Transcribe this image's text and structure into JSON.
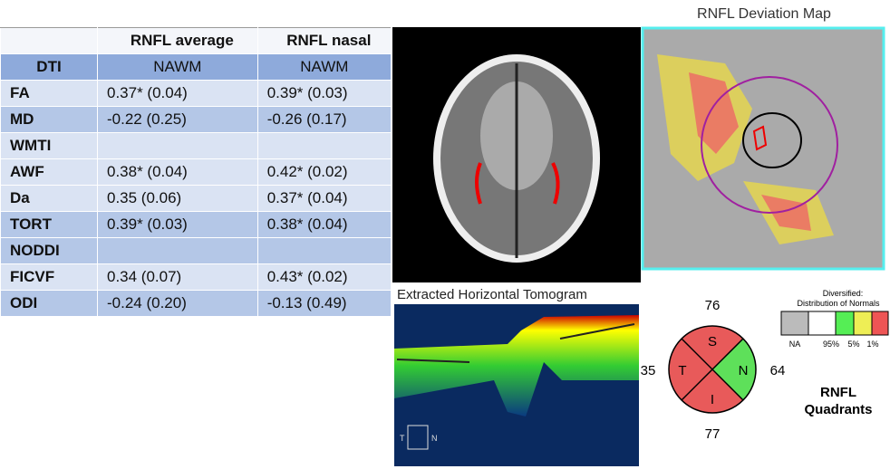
{
  "table": {
    "header": {
      "col1": "RNFL average",
      "col2": "RNFL nasal"
    },
    "rows": [
      [
        "DTI",
        "NAWM",
        "NAWM"
      ],
      [
        "FA",
        "0.37* (0.04)",
        "0.39* (0.03)"
      ],
      [
        "MD",
        "-0.22 (0.25)",
        "-0.26 (0.17)"
      ],
      [
        "WMTI"
      ],
      [
        "AWF",
        "0.38* (0.04)",
        "0.42* (0.02)"
      ],
      [
        "Da",
        "0.35 (0.06)",
        "0.37* (0.04)"
      ],
      [
        "TORT",
        "0.39* (0.03)",
        "0.38* (0.04)"
      ],
      [
        "NODDI"
      ],
      [
        "FICVF",
        "0.34 (0.07)",
        "0.43* (0.02)"
      ],
      [
        "ODI",
        "-0.24 (0.20)",
        "-0.13 (0.49)"
      ]
    ]
  },
  "deviation_map": {
    "title": "RNFL Deviation Map"
  },
  "tomogram": {
    "title": "Extracted Horizontal Tomogram",
    "left": "T",
    "right": "N"
  },
  "quadrants": {
    "superior": {
      "letter": "S",
      "value": "76"
    },
    "nasal": {
      "letter": "N",
      "value": "64"
    },
    "inferior": {
      "letter": "I",
      "value": "77"
    },
    "temporal": {
      "letter": "T",
      "value": "35"
    },
    "caption": [
      "RNFL",
      "Quadrants"
    ]
  },
  "legend": {
    "title": [
      "Diversified:",
      "Distribution of Normals"
    ],
    "labels": [
      "NA",
      "95%",
      "5%",
      "1%"
    ]
  }
}
